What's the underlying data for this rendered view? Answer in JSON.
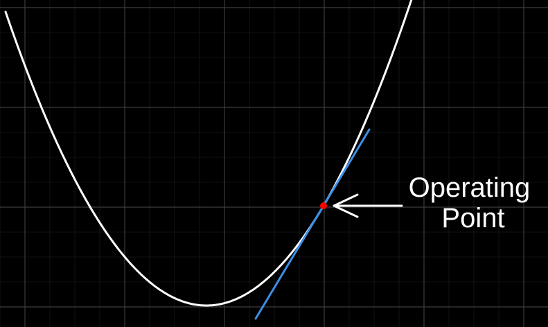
{
  "annotation": {
    "lines": [
      "Operating",
      "Point"
    ]
  },
  "colors": {
    "background": "#000000",
    "grid": "#3c3c3c",
    "curve": "#ffffff",
    "tangent": "#3d8fe6",
    "operating_point": "#ff0000",
    "arrow": "#ffffff"
  }
}
